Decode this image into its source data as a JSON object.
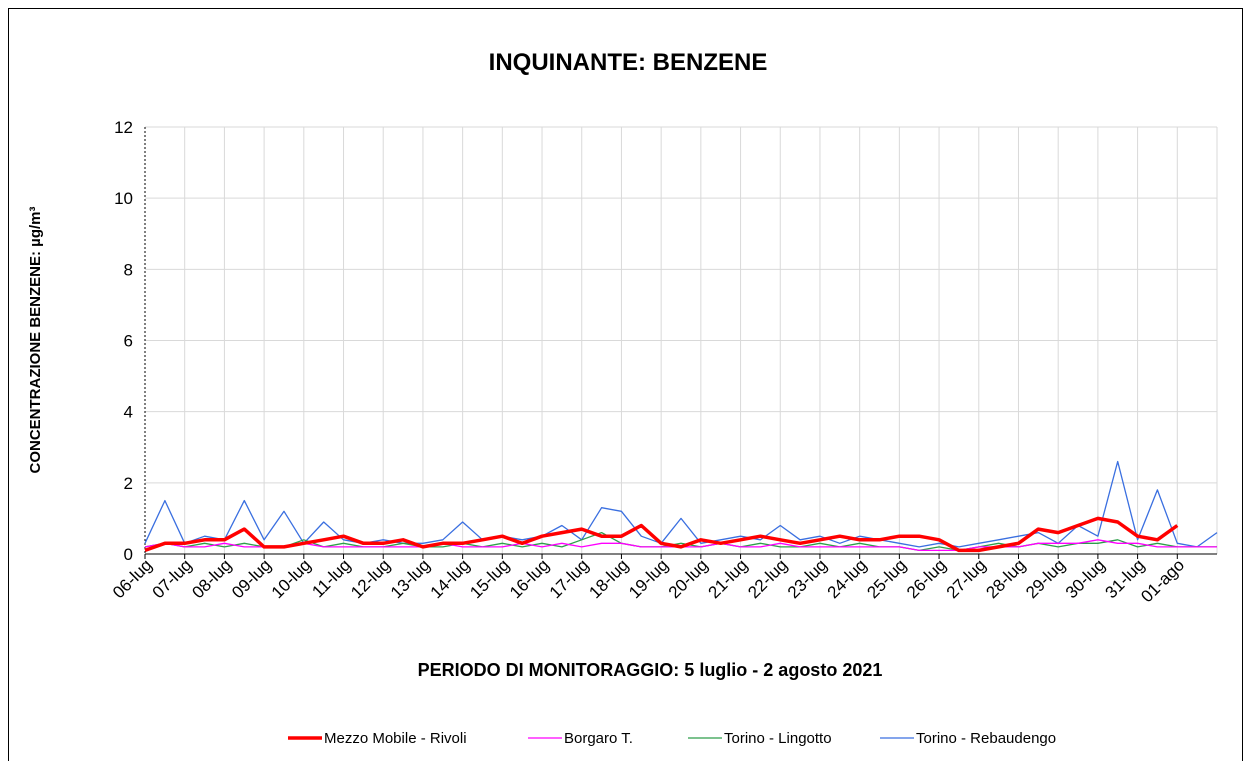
{
  "chart_data": {
    "type": "line",
    "title": "INQUINANTE: BENZENE",
    "xlabel": "PERIODO DI MONITORAGGIO: 5 luglio - 2 agosto 2021",
    "ylabel": "CONCENTRAZIONE BENZENE: µg/m³",
    "xlim": [
      0,
      27
    ],
    "xticks": [
      {
        "value": 0,
        "label": "06-lug"
      },
      {
        "value": 1,
        "label": "07-lug"
      },
      {
        "value": 2,
        "label": "08-lug"
      },
      {
        "value": 3,
        "label": "09-lug"
      },
      {
        "value": 4,
        "label": "10-lug"
      },
      {
        "value": 5,
        "label": "11-lug"
      },
      {
        "value": 6,
        "label": "12-lug"
      },
      {
        "value": 7,
        "label": "13-lug"
      },
      {
        "value": 8,
        "label": "14-lug"
      },
      {
        "value": 9,
        "label": "15-lug"
      },
      {
        "value": 10,
        "label": "16-lug"
      },
      {
        "value": 11,
        "label": "17-lug"
      },
      {
        "value": 12,
        "label": "18-lug"
      },
      {
        "value": 13,
        "label": "19-lug"
      },
      {
        "value": 14,
        "label": "20-lug"
      },
      {
        "value": 15,
        "label": "21-lug"
      },
      {
        "value": 16,
        "label": "22-lug"
      },
      {
        "value": 17,
        "label": "23-lug"
      },
      {
        "value": 18,
        "label": "24-lug"
      },
      {
        "value": 19,
        "label": "25-lug"
      },
      {
        "value": 20,
        "label": "26-lug"
      },
      {
        "value": 21,
        "label": "27-lug"
      },
      {
        "value": 22,
        "label": "28-lug"
      },
      {
        "value": 23,
        "label": "29-lug"
      },
      {
        "value": 24,
        "label": "30-lug"
      },
      {
        "value": 25,
        "label": "31-lug"
      },
      {
        "value": 26,
        "label": "01-ago"
      }
    ],
    "ylim": [
      0,
      12
    ],
    "yticks": [
      0,
      2,
      4,
      6,
      8,
      10,
      12
    ],
    "grid": true,
    "legend": "bottom",
    "x": [
      0,
      0.5,
      1,
      1.5,
      2,
      2.5,
      3,
      3.5,
      4,
      4.5,
      5,
      5.5,
      6,
      6.5,
      7,
      7.5,
      8,
      8.5,
      9,
      9.5,
      10,
      10.5,
      11,
      11.5,
      12,
      12.5,
      13,
      13.5,
      14,
      14.5,
      15,
      15.5,
      16,
      16.5,
      17,
      17.5,
      18,
      18.5,
      19,
      19.5,
      20,
      20.5,
      21,
      21.5,
      22,
      22.5,
      23,
      23.5,
      24,
      24.5,
      25,
      25.5,
      26,
      26.5,
      27
    ],
    "series": [
      {
        "name": "Mezzo Mobile - Rivoli",
        "color": "#ff0000",
        "width": 3.5,
        "values": [
          0.1,
          0.3,
          0.3,
          0.4,
          0.4,
          0.7,
          0.2,
          0.2,
          0.3,
          0.4,
          0.5,
          0.3,
          0.3,
          0.4,
          0.2,
          0.3,
          0.3,
          0.4,
          0.5,
          0.3,
          0.5,
          0.6,
          0.7,
          0.5,
          0.5,
          0.8,
          0.3,
          0.2,
          0.4,
          0.3,
          0.4,
          0.5,
          0.4,
          0.3,
          0.4,
          0.5,
          0.4,
          0.4,
          0.5,
          0.5,
          0.4,
          0.1,
          0.1,
          0.2,
          0.3,
          0.7,
          0.6,
          0.8,
          1.0,
          0.9,
          0.5,
          0.4,
          0.8,
          null,
          null
        ]
      },
      {
        "name": "Borgaro T.",
        "color": "#ff00ff",
        "width": 1.3,
        "values": [
          0.2,
          0.3,
          0.2,
          0.2,
          0.3,
          0.2,
          0.2,
          0.2,
          0.3,
          0.2,
          0.2,
          0.2,
          0.2,
          0.2,
          0.2,
          0.3,
          0.2,
          0.2,
          0.2,
          0.3,
          0.2,
          0.3,
          0.2,
          0.3,
          0.3,
          0.2,
          0.2,
          0.2,
          0.2,
          0.3,
          0.2,
          0.2,
          0.3,
          0.2,
          0.2,
          0.2,
          0.2,
          0.2,
          0.2,
          0.1,
          0.1,
          0.1,
          0.2,
          0.2,
          0.2,
          0.3,
          0.3,
          0.3,
          0.4,
          0.3,
          0.3,
          0.2,
          0.2,
          0.2,
          0.2
        ]
      },
      {
        "name": "Torino - Lingotto",
        "color": "#2e9e4a",
        "width": 1.3,
        "values": [
          0.2,
          0.3,
          0.2,
          0.3,
          0.2,
          0.3,
          0.2,
          0.2,
          0.4,
          0.2,
          0.3,
          0.2,
          0.2,
          0.3,
          0.2,
          0.2,
          0.3,
          0.2,
          0.3,
          0.2,
          0.3,
          0.2,
          0.4,
          0.6,
          0.3,
          0.2,
          0.2,
          0.3,
          0.2,
          0.3,
          0.2,
          0.3,
          0.2,
          0.2,
          0.3,
          0.2,
          0.3,
          0.2,
          0.2,
          0.1,
          0.2,
          0.1,
          0.2,
          0.3,
          0.2,
          0.3,
          0.2,
          0.3,
          0.3,
          0.4,
          0.2,
          0.3,
          0.2,
          0.2,
          0.2
        ]
      },
      {
        "name": "Torino - Rebaudengo",
        "color": "#3a6fe0",
        "width": 1.3,
        "values": [
          0.3,
          1.5,
          0.3,
          0.5,
          0.4,
          1.5,
          0.4,
          1.2,
          0.3,
          0.9,
          0.4,
          0.3,
          0.4,
          0.3,
          0.3,
          0.4,
          0.9,
          0.4,
          0.5,
          0.4,
          0.5,
          0.8,
          0.4,
          1.3,
          1.2,
          0.5,
          0.3,
          1.0,
          0.3,
          0.4,
          0.5,
          0.4,
          0.8,
          0.4,
          0.5,
          0.3,
          0.5,
          0.4,
          0.3,
          0.2,
          0.3,
          0.2,
          0.3,
          0.4,
          0.5,
          0.6,
          0.3,
          0.8,
          0.5,
          2.6,
          0.4,
          1.8,
          0.3,
          0.2,
          0.6
        ]
      }
    ]
  }
}
